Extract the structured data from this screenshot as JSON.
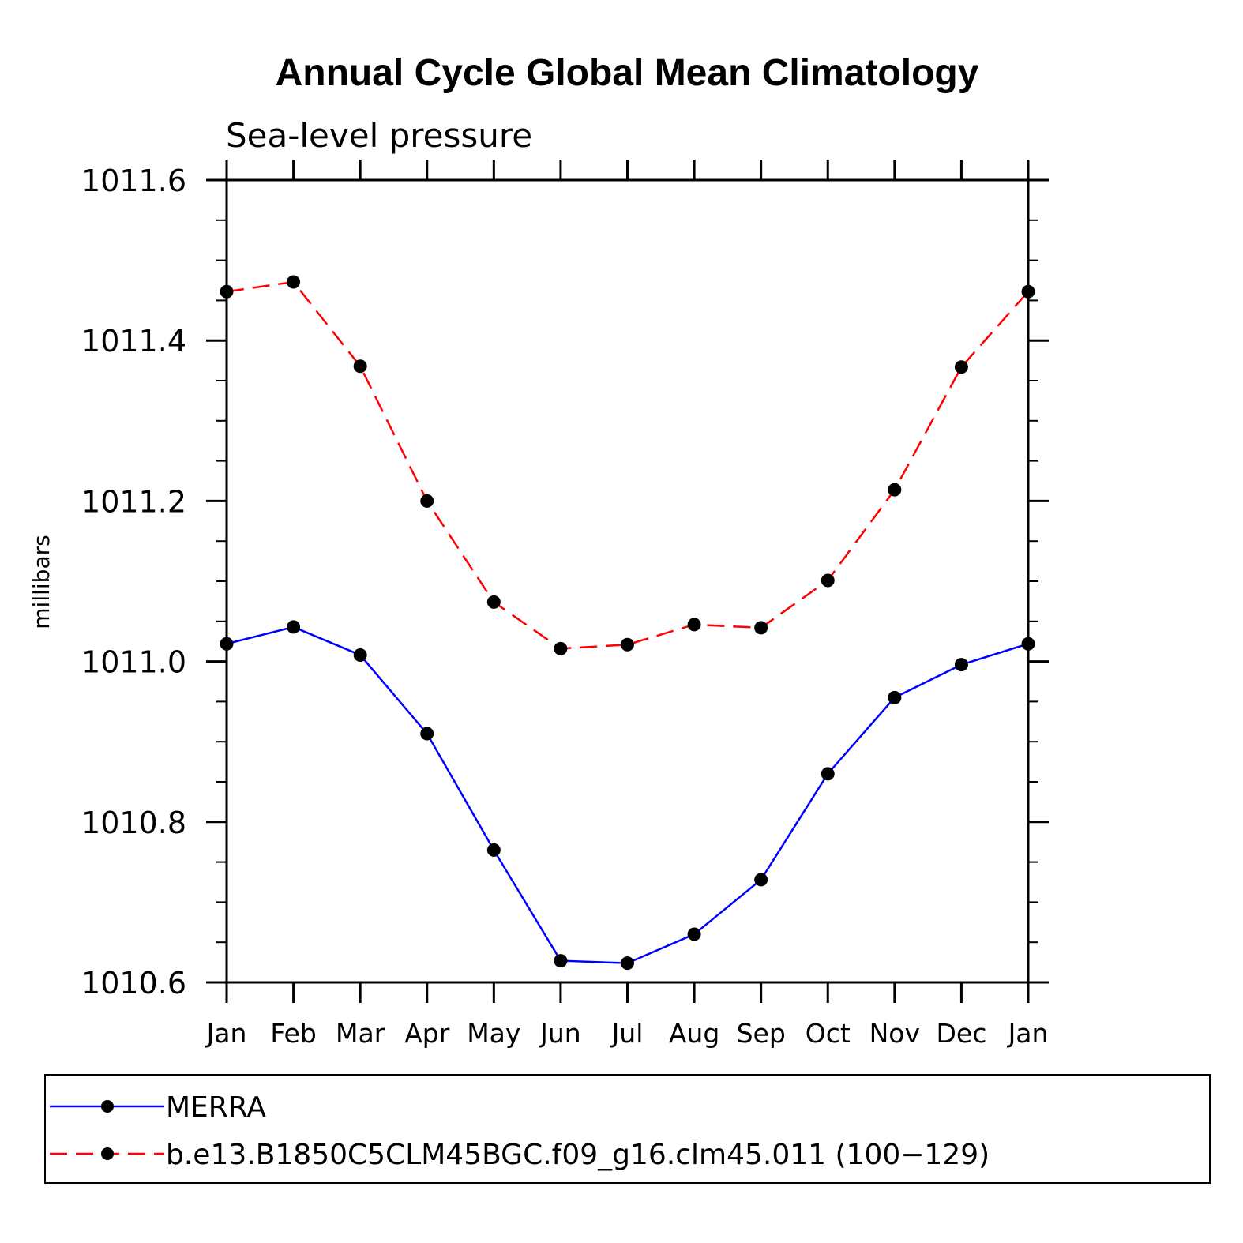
{
  "chart_data": {
    "type": "line",
    "title": "Annual Cycle Global Mean Climatology",
    "subtitle": "Sea-level pressure",
    "xlabel": "",
    "ylabel": "millibars",
    "ylim": [
      1010.6,
      1011.6
    ],
    "yticks": [
      "1010.6",
      "1010.8",
      "1011.0",
      "1011.2",
      "1011.4",
      "1011.6"
    ],
    "categories": [
      "Jan",
      "Feb",
      "Mar",
      "Apr",
      "May",
      "Jun",
      "Jul",
      "Aug",
      "Sep",
      "Oct",
      "Nov",
      "Dec",
      "Jan"
    ],
    "series": [
      {
        "name": "MERRA",
        "color": "#0000ff",
        "dash": "solid",
        "values": [
          1011.022,
          1011.043,
          1011.008,
          1010.91,
          1010.765,
          1010.627,
          1010.624,
          1010.66,
          1010.728,
          1010.86,
          1010.955,
          1010.996,
          1011.022
        ]
      },
      {
        "name": "b.e13.B1850C5CLM45BGC.f09_g16.clm45.011 (100−129)",
        "color": "#ff0000",
        "dash": "dashed",
        "values": [
          1011.461,
          1011.473,
          1011.368,
          1011.2,
          1011.074,
          1011.016,
          1011.021,
          1011.046,
          1011.042,
          1011.101,
          1011.214,
          1011.367,
          1011.461
        ]
      }
    ],
    "marker_color": "#000000",
    "legend_position": "bottom"
  }
}
